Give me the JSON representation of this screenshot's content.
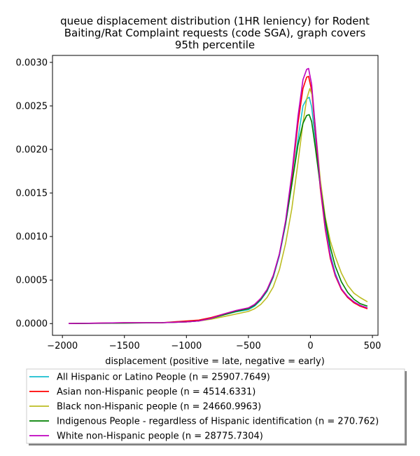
{
  "chart_data": {
    "type": "line",
    "title_lines": [
      "queue displacement distribution (1HR leniency) for Rodent",
      "Baiting/Rat Complaint  requests (code SGA), graph covers",
      "95th percentile"
    ],
    "xlabel": "displacement (positive = late, negative = early)",
    "ylabel": "",
    "xlim": [
      -2080,
      545
    ],
    "ylim": [
      -0.000135,
      0.00308
    ],
    "x_ticks": [
      -2000,
      -1500,
      -1000,
      -500,
      0,
      500
    ],
    "x_tick_labels": [
      "−2000",
      "−1500",
      "−1000",
      "−500",
      "0",
      "500"
    ],
    "y_ticks": [
      0,
      0.0005,
      0.001,
      0.0015,
      0.002,
      0.0025,
      0.003
    ],
    "y_tick_labels": [
      "0.0000",
      "0.0005",
      "0.0010",
      "0.0015",
      "0.0020",
      "0.0025",
      "0.0030"
    ],
    "grid": false,
    "legend_placement": "below-chart",
    "series": [
      {
        "name": "All Hispanic or Latino People (n = 25907.7649)",
        "color": "#17becf",
        "points": [
          [
            -1950,
            0
          ],
          [
            -1500,
            8e-06
          ],
          [
            -1200,
            1e-05
          ],
          [
            -1000,
            2e-05
          ],
          [
            -900,
            3e-05
          ],
          [
            -800,
            6e-05
          ],
          [
            -700,
            0.0001
          ],
          [
            -600,
            0.000135
          ],
          [
            -500,
            0.00016
          ],
          [
            -450,
            0.0002
          ],
          [
            -400,
            0.00027
          ],
          [
            -350,
            0.00037
          ],
          [
            -300,
            0.00053
          ],
          [
            -250,
            0.00078
          ],
          [
            -200,
            0.00114
          ],
          [
            -150,
            0.0016
          ],
          [
            -100,
            0.00212
          ],
          [
            -60,
            0.0025
          ],
          [
            -30,
            0.00258
          ],
          [
            -10,
            0.0026
          ],
          [
            10,
            0.00249
          ],
          [
            40,
            0.0021
          ],
          [
            80,
            0.0016
          ],
          [
            120,
            0.00115
          ],
          [
            160,
            0.0008
          ],
          [
            200,
            0.00058
          ],
          [
            250,
            0.0004
          ],
          [
            300,
            0.0003
          ],
          [
            350,
            0.00025
          ],
          [
            400,
            0.00021
          ],
          [
            460,
            0.00018
          ]
        ]
      },
      {
        "name": "Asian non-Hispanic people (n = 4514.6331)",
        "color": "#ff0000",
        "points": [
          [
            -1950,
            0
          ],
          [
            -1500,
            1e-05
          ],
          [
            -1200,
            1e-05
          ],
          [
            -1000,
            3e-05
          ],
          [
            -900,
            4e-05
          ],
          [
            -800,
            7e-05
          ],
          [
            -700,
            0.00011
          ],
          [
            -600,
            0.00015
          ],
          [
            -500,
            0.00018
          ],
          [
            -450,
            0.00022
          ],
          [
            -400,
            0.00029
          ],
          [
            -350,
            0.00039
          ],
          [
            -300,
            0.00055
          ],
          [
            -250,
            0.0008
          ],
          [
            -200,
            0.00117
          ],
          [
            -150,
            0.00168
          ],
          [
            -100,
            0.0023
          ],
          [
            -60,
            0.0027
          ],
          [
            -30,
            0.00283
          ],
          [
            -15,
            0.00284
          ],
          [
            10,
            0.00268
          ],
          [
            40,
            0.0022
          ],
          [
            80,
            0.00155
          ],
          [
            120,
            0.00108
          ],
          [
            160,
            0.00075
          ],
          [
            200,
            0.00055
          ],
          [
            250,
            0.00039
          ],
          [
            300,
            0.0003
          ],
          [
            350,
            0.00024
          ],
          [
            400,
            0.0002
          ],
          [
            460,
            0.00017
          ]
        ]
      },
      {
        "name": "Black non-Hispanic people (n = 24660.9963)",
        "color": "#bcbd22",
        "points": [
          [
            -1950,
            0
          ],
          [
            -1500,
            8e-06
          ],
          [
            -1200,
            1e-05
          ],
          [
            -1000,
            2e-05
          ],
          [
            -900,
            3e-05
          ],
          [
            -800,
            5e-05
          ],
          [
            -700,
            8e-05
          ],
          [
            -600,
            0.00011
          ],
          [
            -500,
            0.00014
          ],
          [
            -450,
            0.00017
          ],
          [
            -400,
            0.00022
          ],
          [
            -350,
            0.0003
          ],
          [
            -300,
            0.00042
          ],
          [
            -250,
            0.00062
          ],
          [
            -200,
            0.00092
          ],
          [
            -150,
            0.00132
          ],
          [
            -100,
            0.00185
          ],
          [
            -60,
            0.0023
          ],
          [
            -30,
            0.00258
          ],
          [
            -5,
            0.0027
          ],
          [
            15,
            0.00262
          ],
          [
            40,
            0.00225
          ],
          [
            80,
            0.00165
          ],
          [
            120,
            0.00122
          ],
          [
            160,
            0.00095
          ],
          [
            200,
            0.00077
          ],
          [
            250,
            0.00058
          ],
          [
            300,
            0.00044
          ],
          [
            350,
            0.00035
          ],
          [
            400,
            0.0003
          ],
          [
            460,
            0.00025
          ]
        ]
      },
      {
        "name": "Indigenous People - regardless of Hispanic identification (n = 270.762)",
        "color": "#008000",
        "points": [
          [
            -1950,
            0
          ],
          [
            -1500,
            5e-06
          ],
          [
            -1200,
            1e-05
          ],
          [
            -1000,
            2e-05
          ],
          [
            -900,
            3e-05
          ],
          [
            -800,
            6e-05
          ],
          [
            -700,
            0.0001
          ],
          [
            -600,
            0.00014
          ],
          [
            -500,
            0.00017
          ],
          [
            -450,
            0.00021
          ],
          [
            -400,
            0.00028
          ],
          [
            -350,
            0.00038
          ],
          [
            -300,
            0.00054
          ],
          [
            -250,
            0.0008
          ],
          [
            -200,
            0.00115
          ],
          [
            -150,
            0.0016
          ],
          [
            -100,
            0.00205
          ],
          [
            -60,
            0.0023
          ],
          [
            -30,
            0.00239
          ],
          [
            -10,
            0.0024
          ],
          [
            10,
            0.00232
          ],
          [
            40,
            0.00202
          ],
          [
            80,
            0.00158
          ],
          [
            120,
            0.00119
          ],
          [
            160,
            0.00088
          ],
          [
            200,
            0.00066
          ],
          [
            250,
            0.00048
          ],
          [
            300,
            0.00036
          ],
          [
            350,
            0.00028
          ],
          [
            400,
            0.00023
          ],
          [
            460,
            0.0002
          ]
        ]
      },
      {
        "name": "White non-Hispanic people (n = 28775.7304)",
        "color": "#bf00bf",
        "points": [
          [
            -1950,
            0
          ],
          [
            -1500,
            1e-05
          ],
          [
            -1200,
            1e-05
          ],
          [
            -1000,
            2e-05
          ],
          [
            -900,
            3e-05
          ],
          [
            -800,
            6e-05
          ],
          [
            -700,
            0.00011
          ],
          [
            -600,
            0.00015
          ],
          [
            -500,
            0.00018
          ],
          [
            -450,
            0.00022
          ],
          [
            -400,
            0.00029
          ],
          [
            -350,
            0.00039
          ],
          [
            -300,
            0.00055
          ],
          [
            -250,
            0.0008
          ],
          [
            -200,
            0.00118
          ],
          [
            -150,
            0.00172
          ],
          [
            -100,
            0.00238
          ],
          [
            -60,
            0.0028
          ],
          [
            -30,
            0.00292
          ],
          [
            -15,
            0.00293
          ],
          [
            10,
            0.00275
          ],
          [
            40,
            0.00225
          ],
          [
            80,
            0.00158
          ],
          [
            120,
            0.0011
          ],
          [
            160,
            0.00077
          ],
          [
            200,
            0.00056
          ],
          [
            250,
            0.0004
          ],
          [
            300,
            0.00031
          ],
          [
            350,
            0.00025
          ],
          [
            400,
            0.00021
          ],
          [
            460,
            0.00018
          ]
        ]
      }
    ]
  }
}
